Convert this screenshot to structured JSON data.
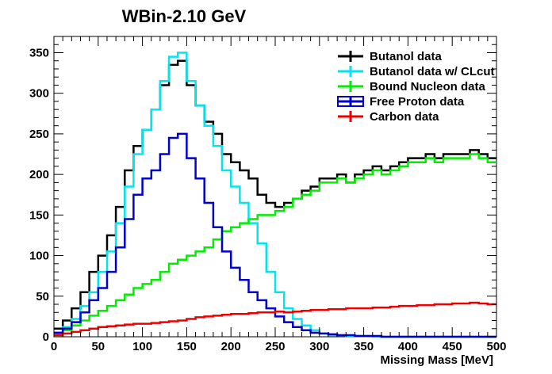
{
  "chart_data": {
    "type": "line",
    "drawstyle": "histogram-steps",
    "title": "WBin-2.10 GeV",
    "xlabel": "Missing Mass [MeV]",
    "ylabel": "",
    "xlim": [
      0,
      500
    ],
    "ylim": [
      0,
      370
    ],
    "xticks": [
      0,
      50,
      100,
      150,
      200,
      250,
      300,
      350,
      400,
      450,
      500
    ],
    "yticks": [
      0,
      50,
      100,
      150,
      200,
      250,
      300,
      350
    ],
    "grid": false,
    "legend_position": "top-right",
    "x": [
      5,
      15,
      25,
      35,
      45,
      55,
      65,
      75,
      85,
      95,
      105,
      115,
      125,
      135,
      145,
      155,
      165,
      175,
      185,
      195,
      205,
      215,
      225,
      235,
      245,
      255,
      265,
      275,
      285,
      295,
      305,
      315,
      325,
      335,
      345,
      355,
      365,
      375,
      385,
      395,
      405,
      415,
      425,
      435,
      445,
      455,
      465,
      475,
      485,
      495
    ],
    "series": [
      {
        "name": "Butanol data",
        "color": "#000000",
        "values": [
          10,
          20,
          35,
          55,
          80,
          100,
          125,
          160,
          205,
          235,
          255,
          280,
          310,
          335,
          340,
          310,
          285,
          265,
          250,
          225,
          215,
          205,
          195,
          175,
          165,
          160,
          165,
          170,
          180,
          185,
          195,
          195,
          200,
          190,
          200,
          205,
          210,
          205,
          210,
          215,
          220,
          220,
          225,
          220,
          225,
          225,
          225,
          230,
          225,
          220
        ]
      },
      {
        "name": "Butanol data w/ CLcut",
        "color": "#00e5ee",
        "values": [
          5,
          12,
          22,
          38,
          55,
          80,
          105,
          140,
          185,
          225,
          255,
          280,
          315,
          345,
          350,
          315,
          285,
          260,
          235,
          205,
          185,
          165,
          140,
          115,
          80,
          55,
          35,
          22,
          14,
          8,
          4,
          2,
          2,
          1,
          1,
          1,
          0,
          0,
          0,
          0,
          0,
          0,
          0,
          0,
          0,
          0,
          0,
          0,
          0,
          0
        ]
      },
      {
        "name": "Bound Nucleon data",
        "color": "#00ee00",
        "values": [
          3,
          8,
          14,
          20,
          26,
          32,
          38,
          45,
          52,
          60,
          65,
          70,
          80,
          90,
          95,
          100,
          105,
          110,
          120,
          130,
          135,
          140,
          145,
          150,
          150,
          155,
          160,
          170,
          175,
          180,
          190,
          190,
          195,
          190,
          195,
          200,
          205,
          200,
          205,
          210,
          215,
          215,
          220,
          215,
          220,
          220,
          220,
          225,
          220,
          215
        ]
      },
      {
        "name": "Free Proton data",
        "color": "#0000cc",
        "values": [
          5,
          10,
          18,
          30,
          45,
          60,
          80,
          110,
          145,
          175,
          195,
          205,
          225,
          245,
          250,
          220,
          195,
          165,
          135,
          105,
          85,
          70,
          55,
          45,
          35,
          25,
          18,
          12,
          8,
          5,
          4,
          3,
          2,
          2,
          1,
          1,
          1,
          0,
          0,
          0,
          0,
          0,
          0,
          0,
          0,
          0,
          0,
          0,
          0,
          0
        ]
      },
      {
        "name": "Carbon data",
        "color": "#ee0000",
        "values": [
          2,
          4,
          6,
          8,
          10,
          12,
          13,
          14,
          15,
          16,
          16,
          17,
          18,
          19,
          20,
          22,
          24,
          25,
          26,
          27,
          28,
          28,
          29,
          30,
          30,
          31,
          30,
          31,
          32,
          33,
          33,
          34,
          34,
          35,
          35,
          35,
          36,
          36,
          37,
          38,
          38,
          39,
          39,
          40,
          40,
          41,
          41,
          42,
          41,
          40
        ]
      }
    ]
  }
}
